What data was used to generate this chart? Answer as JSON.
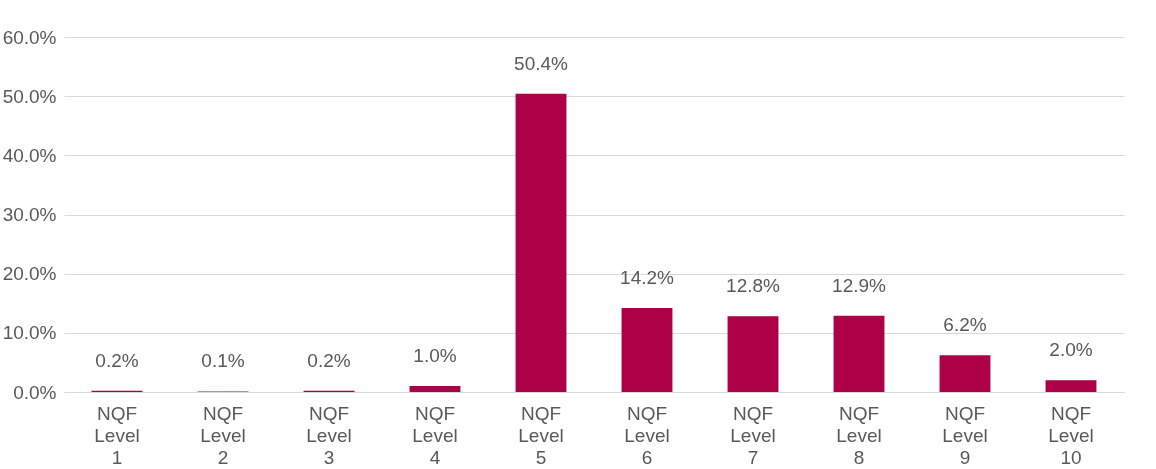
{
  "chart_data": {
    "type": "bar",
    "categories": [
      "NQF Level 1",
      "NQF Level 2",
      "NQF Level 3",
      "NQF Level 4",
      "NQF Level 5",
      "NQF Level 6",
      "NQF Level 7",
      "NQF Level 8",
      "NQF Level 9",
      "NQF Level 10"
    ],
    "values": [
      0.2,
      0.1,
      0.2,
      1.0,
      50.4,
      14.2,
      12.8,
      12.9,
      6.2,
      2.0
    ],
    "value_labels": [
      "0.2%",
      "0.1%",
      "0.2%",
      "1.0%",
      "50.4%",
      "14.2%",
      "12.8%",
      "12.9%",
      "6.2%",
      "2.0%"
    ],
    "color": "#ad0047",
    "ylim": [
      0,
      60
    ],
    "yticks": [
      {
        "value": 0,
        "label": "0.0%"
      },
      {
        "value": 10,
        "label": "10.0%"
      },
      {
        "value": 20,
        "label": "20.0%"
      },
      {
        "value": 30,
        "label": "30.0%"
      },
      {
        "value": 40,
        "label": "40.0%"
      },
      {
        "value": 50,
        "label": "50.0%"
      },
      {
        "value": 60,
        "label": "60.0%"
      }
    ],
    "grid": "y"
  }
}
